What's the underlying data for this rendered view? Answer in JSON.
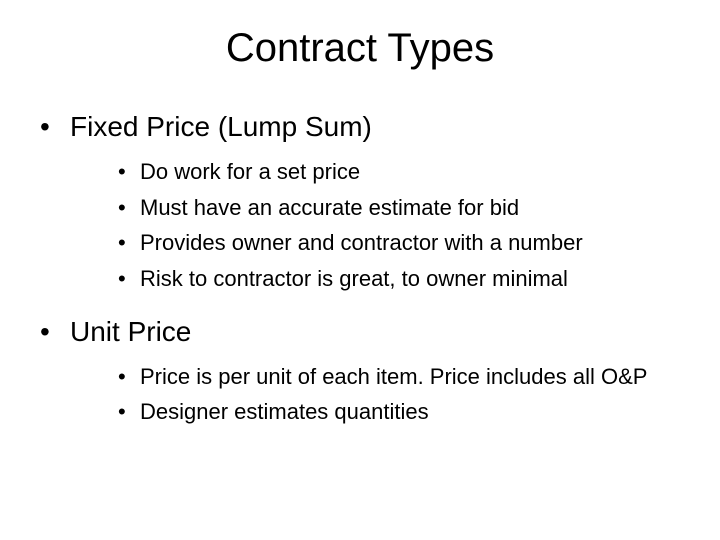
{
  "title": "Contract Types",
  "sections": [
    {
      "heading": "Fixed Price (Lump Sum)",
      "items": [
        "Do work for a set price",
        "Must have an accurate estimate for bid",
        "Provides owner and contractor with a number",
        "Risk to contractor is great, to owner minimal"
      ]
    },
    {
      "heading": "Unit Price",
      "items": [
        "Price is per unit of each item.  Price includes all O&P",
        "Designer estimates quantities"
      ]
    }
  ],
  "style": {
    "background_color": "#ffffff",
    "text_color": "#000000",
    "title_fontsize": 40,
    "level1_fontsize": 28,
    "level2_fontsize": 22,
    "bullet_char": "•",
    "font_family": "Arial"
  }
}
